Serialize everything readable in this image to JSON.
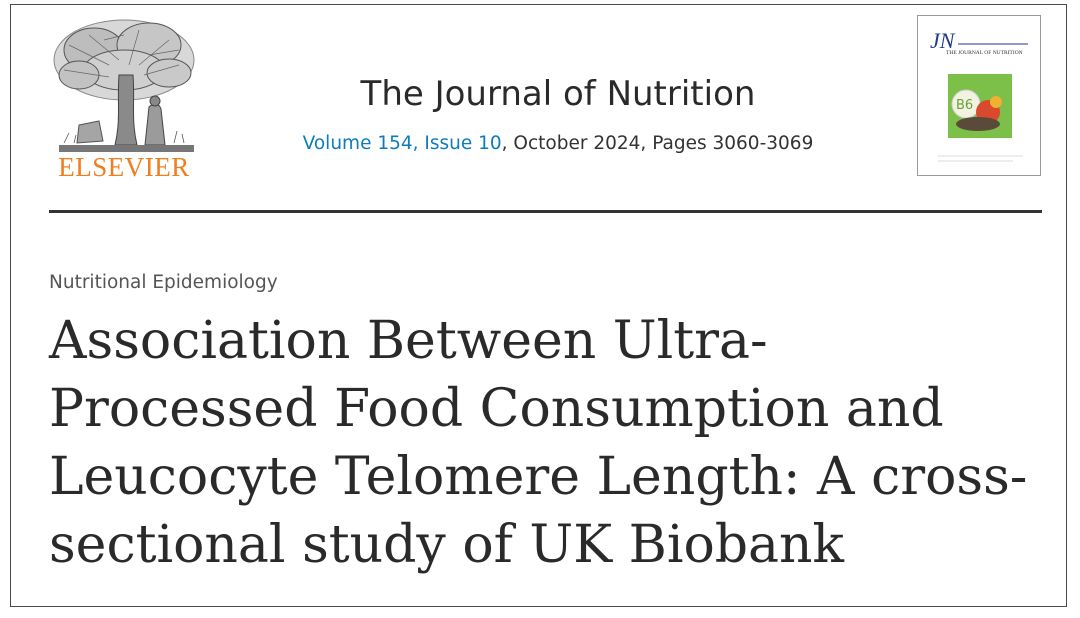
{
  "header": {
    "publisher": "ELSEVIER",
    "journal_title": "The Journal of Nutrition",
    "volume_issue": "Volume 154, Issue 10",
    "date_pages": ", October 2024, Pages 3060-3069"
  },
  "cover": {
    "masthead": "JN",
    "subtitle": "THE JOURNAL OF NUTRITION",
    "badge": "B6"
  },
  "article": {
    "section": "Nutritional Epidemiology",
    "title_lines": [
      "Association Between Ultra-",
      "Processed Food Consumption and",
      "Leucocyte Telomere Length: A cross-",
      "sectional study of UK Biobank"
    ]
  },
  "colors": {
    "publisher": "#f07d1e",
    "link": "#0c7dbb",
    "text": "#2a2a2a"
  },
  "icons": {
    "publisher_logo": "tree-engraving-icon"
  }
}
